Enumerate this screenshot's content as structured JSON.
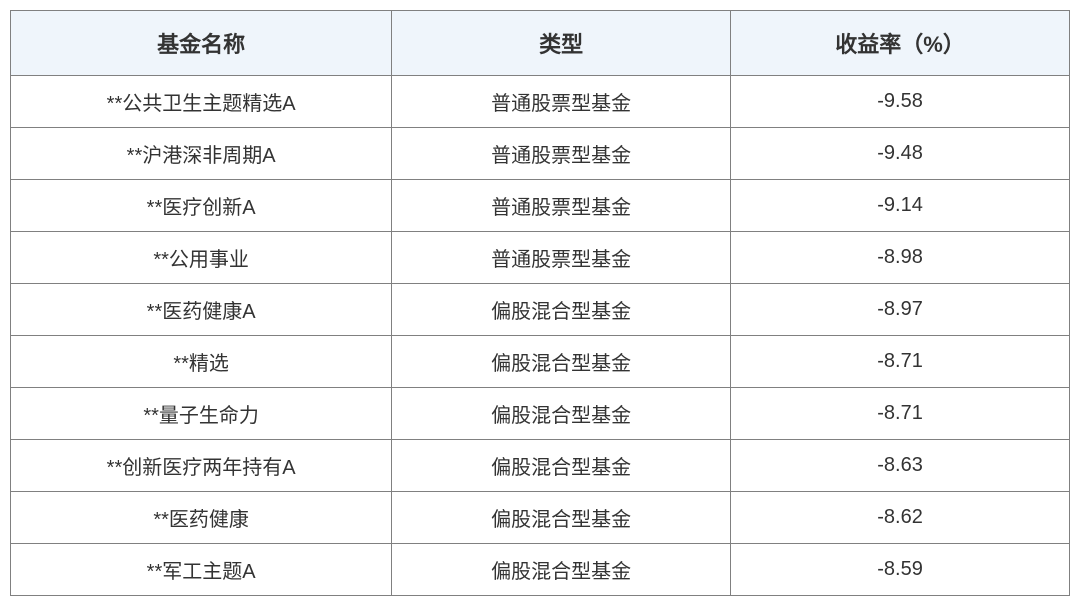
{
  "table": {
    "columns": [
      "基金名称",
      "类型",
      "收益率（%）"
    ],
    "rows": [
      [
        "**公共卫生主题精选A",
        "普通股票型基金",
        "-9.58"
      ],
      [
        "**沪港深非周期A",
        "普通股票型基金",
        "-9.48"
      ],
      [
        "**医疗创新A",
        "普通股票型基金",
        "-9.14"
      ],
      [
        "**公用事业",
        "普通股票型基金",
        "-8.98"
      ],
      [
        "**医药健康A",
        "偏股混合型基金",
        "-8.97"
      ],
      [
        "**精选",
        "偏股混合型基金",
        "-8.71"
      ],
      [
        "**量子生命力",
        "偏股混合型基金",
        "-8.71"
      ],
      [
        "**创新医疗两年持有A",
        "偏股混合型基金",
        "-8.63"
      ],
      [
        "**医药健康",
        "偏股混合型基金",
        "-8.62"
      ],
      [
        "**军工主题A",
        "偏股混合型基金",
        "-8.59"
      ]
    ],
    "header_bg_color": "#eff5fb",
    "border_color": "#808080",
    "text_color": "#333333",
    "body_bg_color": "#ffffff",
    "header_fontsize": 22,
    "body_fontsize": 20,
    "column_widths_pct": [
      36,
      32,
      32
    ]
  }
}
